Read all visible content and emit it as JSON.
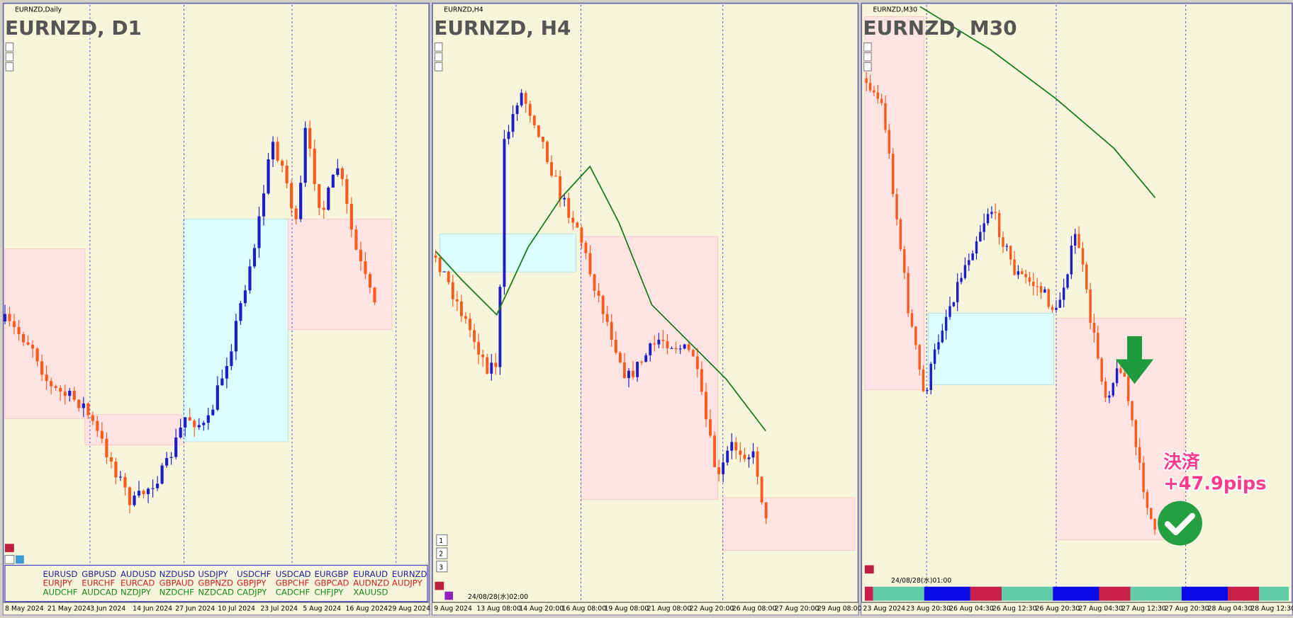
{
  "panels": [
    {
      "window_title": "EURNZD,Daily",
      "symbol_title": "EURNZD, D1",
      "x_labels": [
        "8 May 2024",
        "21 May 2024",
        "3 Jun 2024",
        "14 Jun 2024",
        "27 Jun 2024",
        "10 Jul 2024",
        "23 Jul 2024",
        "5 Aug 2024",
        "16 Aug 2024",
        "29 Aug 2024"
      ],
      "pairs": [
        [
          "EURUSD",
          "GBPUSD",
          "AUDUSD",
          "NZDUSD",
          "USDJPY",
          "USDCHF",
          "USDCAD",
          "EURGBP",
          "EURAUD",
          "EURNZD"
        ],
        [
          "EURJPY",
          "EURCHF",
          "EURCAD",
          "GBPAUD",
          "GBPNZD",
          "GBPJPY",
          "GBPCHF",
          "GBPCAD",
          "AUDNZD",
          "AUDJPY"
        ],
        [
          "AUDCHF",
          "AUDCAD",
          "NZDJPY",
          "NZDCHF",
          "NZDCAD",
          "CADJPY",
          "CADCHF",
          "CHFJPY",
          "XAUUSD"
        ]
      ]
    },
    {
      "window_title": "EURNZD,H4",
      "symbol_title": "EURNZD, H4",
      "x_labels": [
        "9 Aug 2024",
        "13 Aug 08:00",
        "14 Aug 20:00",
        "16 Aug 08:00",
        "19 Aug 08:00",
        "21 Aug 08:00",
        "22 Aug 20:00",
        "26 Aug 08:00",
        "27 Aug 20:00",
        "29 Aug 08:00"
      ],
      "timestamp": "24/08/28(水)02:00",
      "buttons": [
        "1",
        "2",
        "3"
      ]
    },
    {
      "window_title": "EURNZD,M30",
      "symbol_title": "EURNZD, M30",
      "x_labels": [
        "23 Aug 2024",
        "23 Aug 20:30",
        "26 Aug 04:30",
        "26 Aug 12:30",
        "26 Aug 20:30",
        "27 Aug 04:30",
        "27 Aug 12:30",
        "27 Aug 20:30",
        "28 Aug 04:30",
        "28 Aug 12:30"
      ],
      "timestamp": "24/08/28(水)01:00",
      "annotation": {
        "label": "決済",
        "pips": "+47.9pips"
      }
    }
  ]
}
